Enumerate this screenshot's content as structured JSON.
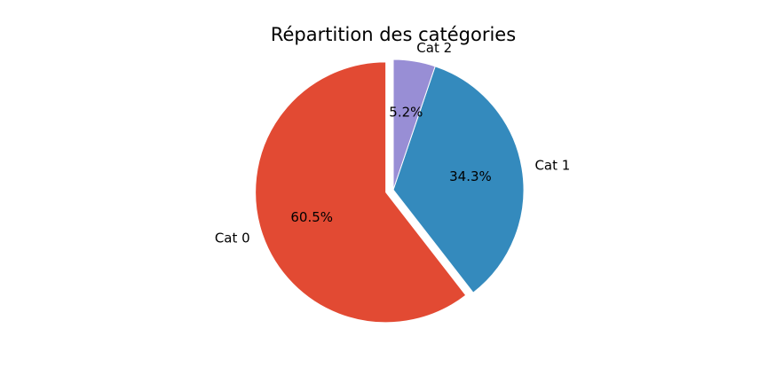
{
  "chart_data": {
    "type": "pie",
    "title": "Répartition des catégories",
    "slices": [
      {
        "label": "Cat 0",
        "value": 60.5,
        "display": "60.5%",
        "color": "#E24A33",
        "exploded": true
      },
      {
        "label": "Cat 1",
        "value": 34.3,
        "display": "34.3%",
        "color": "#348ABD",
        "exploded": false
      },
      {
        "label": "Cat 2",
        "value": 5.2,
        "display": "5.2%",
        "color": "#988ED5",
        "exploded": false
      }
    ],
    "start_angle_deg": 90,
    "direction": "counterclockwise",
    "edge_color": "#ffffff"
  }
}
